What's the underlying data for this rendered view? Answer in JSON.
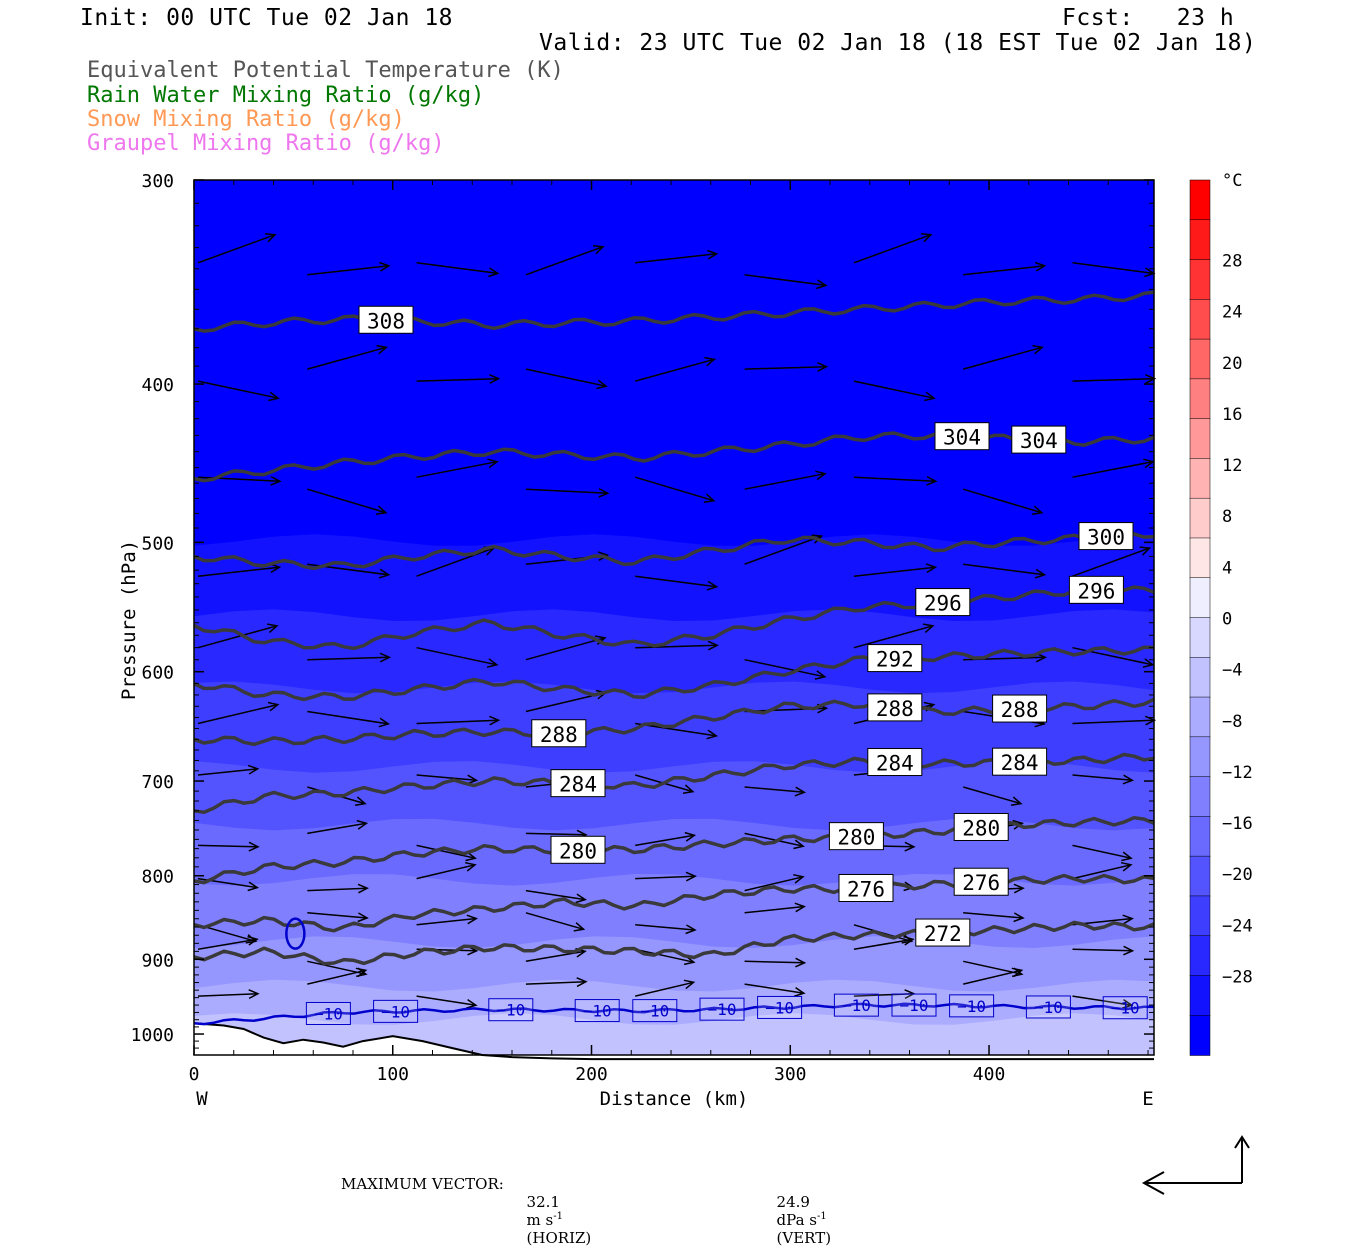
{
  "header": {
    "init": "Init: 00 UTC Tue 02 Jan 18",
    "fcst": "Fcst:   23 h",
    "valid": "Valid: 23 UTC Tue 02 Jan 18 (18 EST Tue 02 Jan 18)"
  },
  "fields": [
    {
      "label": "Equivalent Potential Temperature (K)",
      "color": "#555555"
    },
    {
      "label": "Rain Water Mixing Ratio (g/kg)",
      "color": "#007700"
    },
    {
      "label": "Snow Mixing Ratio (g/kg)",
      "color": "#ff9955"
    },
    {
      "label": "Graupel Mixing Ratio (g/kg)",
      "color": "#ee77ee"
    }
  ],
  "chart_data": {
    "type": "cross-section contour",
    "xlabel": "Distance (km)",
    "ylabel": "Pressure (hPa)",
    "x_ticks": [
      0,
      100,
      200,
      300,
      400
    ],
    "y_ticks": [
      300,
      400,
      500,
      600,
      700,
      800,
      900,
      1000
    ],
    "xlim": [
      0,
      483
    ],
    "ylim": [
      300,
      1030
    ],
    "y_scale": "log (pressure)",
    "left_end_label": "W",
    "right_end_label": "E",
    "colorbar": {
      "unit": "°C",
      "labels": [
        "28",
        "24",
        "20",
        "16",
        "12",
        "8",
        "4",
        "0",
        "−4",
        "−8",
        "−12",
        "−16",
        "−20",
        "−24",
        "−28"
      ],
      "positive_colors": [
        "#ff0000",
        "#ff1a1a",
        "#ff3333",
        "#ff4d4d",
        "#ff6666",
        "#ff8080",
        "#ff9999",
        "#ffb3b3",
        "#ffcccc",
        "#ffe6e6"
      ],
      "negative_colors": [
        "#eeeeff",
        "#d8d8ff",
        "#c2c2ff",
        "#acacff",
        "#9696ff",
        "#8080ff",
        "#6a6aff",
        "#5454ff",
        "#3e3eff",
        "#2828ff",
        "#1212ff",
        "#0000ff"
      ]
    },
    "theta_e_contours": [
      {
        "label": "308",
        "p": [
          370,
          367,
          365,
          366,
          368,
          367,
          366,
          364,
          362,
          360,
          358,
          356,
          355,
          353
        ]
      },
      {
        "label": "304",
        "p": [
          457,
          452,
          447,
          443,
          440,
          442,
          444,
          440,
          436,
          431,
          430,
          432,
          434,
          432
        ]
      },
      {
        "label": "300",
        "p": [
          510,
          515,
          517,
          510,
          505,
          510,
          514,
          506,
          498,
          500,
          504,
          500,
          497,
          494
        ]
      },
      {
        "label": "296",
        "p": [
          562,
          575,
          580,
          568,
          560,
          570,
          578,
          570,
          558,
          548,
          545,
          540,
          535,
          535
        ]
      },
      {
        "label": "292",
        "p": [
          610,
          620,
          622,
          615,
          608,
          615,
          620,
          612,
          600,
          590,
          588,
          585,
          583,
          582
        ]
      },
      {
        "label": "288",
        "p": [
          660,
          662,
          660,
          655,
          653,
          655,
          650,
          640,
          630,
          628,
          635,
          633,
          630,
          626
        ]
      },
      {
        "label": "284",
        "p": [
          730,
          715,
          712,
          705,
          700,
          702,
          705,
          695,
          685,
          681,
          683,
          682,
          680,
          676
        ]
      },
      {
        "label": "280",
        "p": [
          806,
          790,
          785,
          775,
          770,
          772,
          771,
          765,
          760,
          757,
          752,
          745,
          742,
          740
        ]
      },
      {
        "label": "276",
        "p": [
          857,
          852,
          862,
          845,
          838,
          830,
          835,
          822,
          815,
          815,
          810,
          806,
          803,
          805
        ]
      },
      {
        "label": "272",
        "p": [
          897,
          890,
          905,
          892,
          885,
          887,
          890,
          895,
          875,
          870,
          868,
          863,
          858,
          860
        ]
      }
    ],
    "temperature_contour": {
      "label": "−10",
      "p": [
        985,
        978,
        970,
        968,
        966,
        967,
        968,
        966,
        963,
        960,
        960,
        962,
        963,
        964
      ]
    },
    "vector_legend": {
      "title": "MAXIMUM VECTOR:",
      "horiz_value": "32.1",
      "horiz_unit": "m s",
      "vert_value": "24.9",
      "vert_unit": "dPa s",
      "exponent": "-1",
      "horiz_tag": "(HORIZ)",
      "vert_tag": "(VERT)"
    }
  }
}
